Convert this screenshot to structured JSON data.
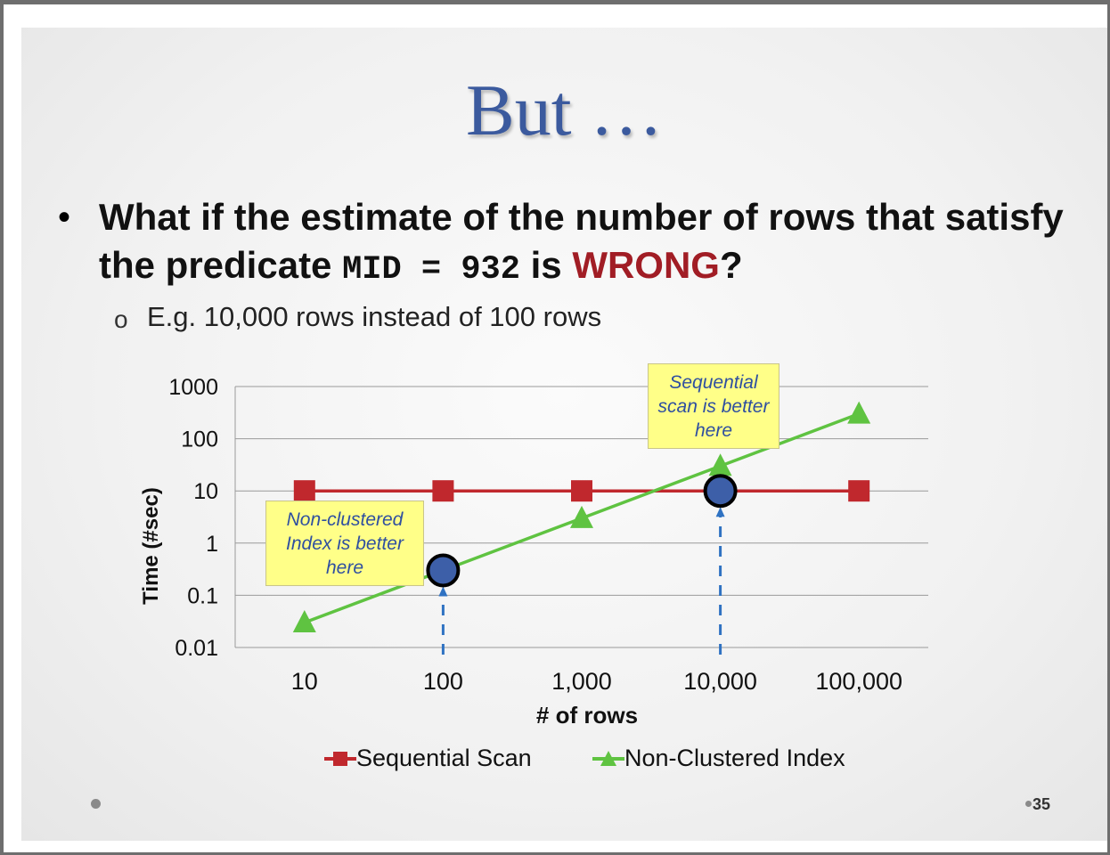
{
  "slide": {
    "title": "But …",
    "bullet_part1": "What if the estimate of the number of rows that satisfy the predicate ",
    "bullet_code": "MID = 932",
    "bullet_part2": " is ",
    "bullet_highlight": "WRONG",
    "bullet_end": "?",
    "sub_bullet": "E.g. 10,000 rows instead of 100 rows",
    "callout_seq": "Sequential scan is better here",
    "callout_idx": "Non-clustered Index is better here",
    "page_number": "35"
  },
  "colors": {
    "title": "#3b5a9e",
    "highlight": "#a11d25",
    "seq": "#c0282d",
    "idx": "#5fc341",
    "marker": "#3d5fa8",
    "arrow": "#2f72c2"
  },
  "chart_data": {
    "type": "line",
    "xlabel": "# of rows",
    "ylabel": "Time (#sec)",
    "x_scale": "log",
    "y_scale": "log",
    "categories": [
      "10",
      "100",
      "1,000",
      "10,000",
      "100,000"
    ],
    "x": [
      10,
      100,
      1000,
      10000,
      100000
    ],
    "y_ticks": [
      "1000",
      "100",
      "10",
      "1",
      "0.1",
      "0.01"
    ],
    "ylim": [
      0.01,
      1000
    ],
    "grid": true,
    "legend_position": "bottom",
    "series": [
      {
        "name": "Sequential Scan",
        "values": [
          10,
          10,
          10,
          10,
          10
        ],
        "marker": "square"
      },
      {
        "name": "Non-Clustered Index",
        "values": [
          0.03,
          0.3,
          3,
          30,
          300
        ],
        "marker": "triangle"
      }
    ],
    "highlights": [
      {
        "x": 100,
        "y": 0.3
      },
      {
        "x": 10000,
        "y": 10
      }
    ]
  }
}
